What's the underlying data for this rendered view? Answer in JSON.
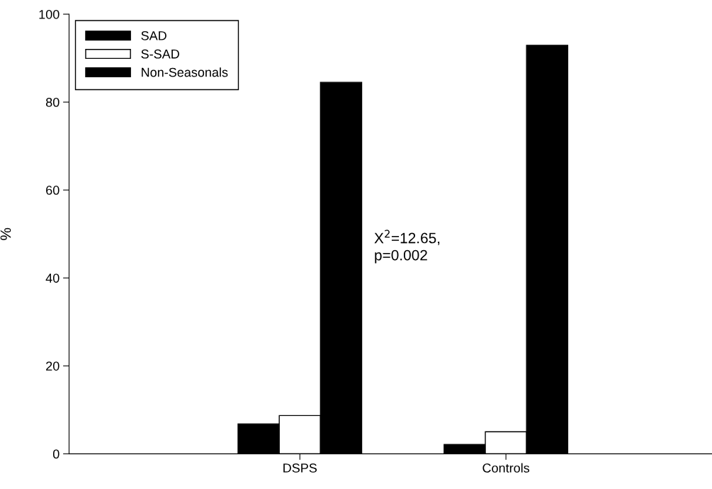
{
  "chart_data": {
    "type": "bar",
    "ylabel": "%",
    "categories": [
      "DSPS",
      "Controls"
    ],
    "series": [
      {
        "name": "SAD",
        "color": "#000000",
        "values": [
          6.8,
          2.1
        ]
      },
      {
        "name": "S-SAD",
        "color": "#ffffff",
        "values": [
          8.7,
          5.0
        ]
      },
      {
        "name": "Non-Seasonals",
        "color": "#000000",
        "values": [
          84.5,
          92.9
        ]
      }
    ],
    "ylim": [
      0,
      100
    ],
    "yticks": [
      0,
      20,
      40,
      60,
      80,
      100
    ],
    "grid": false,
    "legend": "top left",
    "annotations": [
      "X$^{2}$=12.65,\np=0.002"
    ]
  }
}
